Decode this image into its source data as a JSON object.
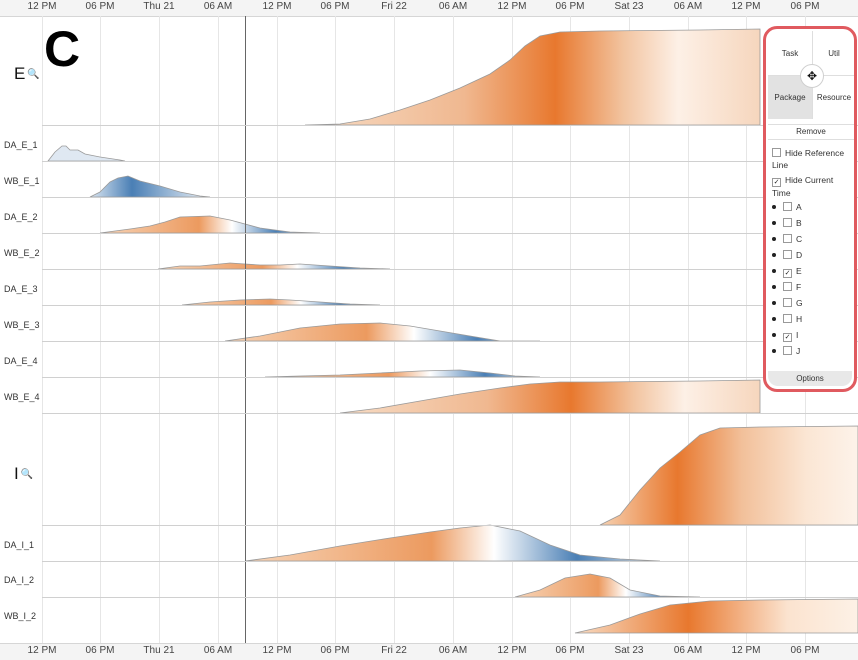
{
  "panel_letter": "C",
  "time_axis_labels": [
    "12 PM",
    "06 PM",
    "Thu 21",
    "06 AM",
    "12 PM",
    "06 PM",
    "Fri 22",
    "06 AM",
    "12 PM",
    "06 PM",
    "Sat 23",
    "06 AM",
    "12 PM",
    "06 PM"
  ],
  "groups": [
    {
      "label": "E",
      "rows": [
        "DA_E_1",
        "WB_E_1",
        "DA_E_2",
        "WB_E_2",
        "DA_E_3",
        "WB_E_3",
        "DA_E_4",
        "WB_E_4"
      ]
    },
    {
      "label": "I",
      "rows": [
        "DA_I_1",
        "DA_I_2",
        "WB_I_2"
      ]
    }
  ],
  "colors": {
    "orange": "#e8782e",
    "blue": "#4a7fb5",
    "outline": "#9a9a9a",
    "panel_border": "#e05a5f"
  },
  "control_panel": {
    "views": {
      "task": "Task",
      "util": "Util",
      "package": "Package",
      "resource": "Resource"
    },
    "selected_view": "Package",
    "move_icon": "✥",
    "remove": "Remove",
    "options_toggles": [
      {
        "label": "Hide Reference Line",
        "checked": false
      },
      {
        "label": "Hide Current Time",
        "checked": true
      }
    ],
    "layers": [
      {
        "label": "A",
        "checked": false
      },
      {
        "label": "B",
        "checked": false
      },
      {
        "label": "C",
        "checked": false
      },
      {
        "label": "D",
        "checked": false
      },
      {
        "label": "E",
        "checked": true
      },
      {
        "label": "F",
        "checked": false
      },
      {
        "label": "G",
        "checked": false
      },
      {
        "label": "H",
        "checked": false
      },
      {
        "label": "I",
        "checked": true
      },
      {
        "label": "J",
        "checked": false
      }
    ],
    "options_button": "Options"
  }
}
